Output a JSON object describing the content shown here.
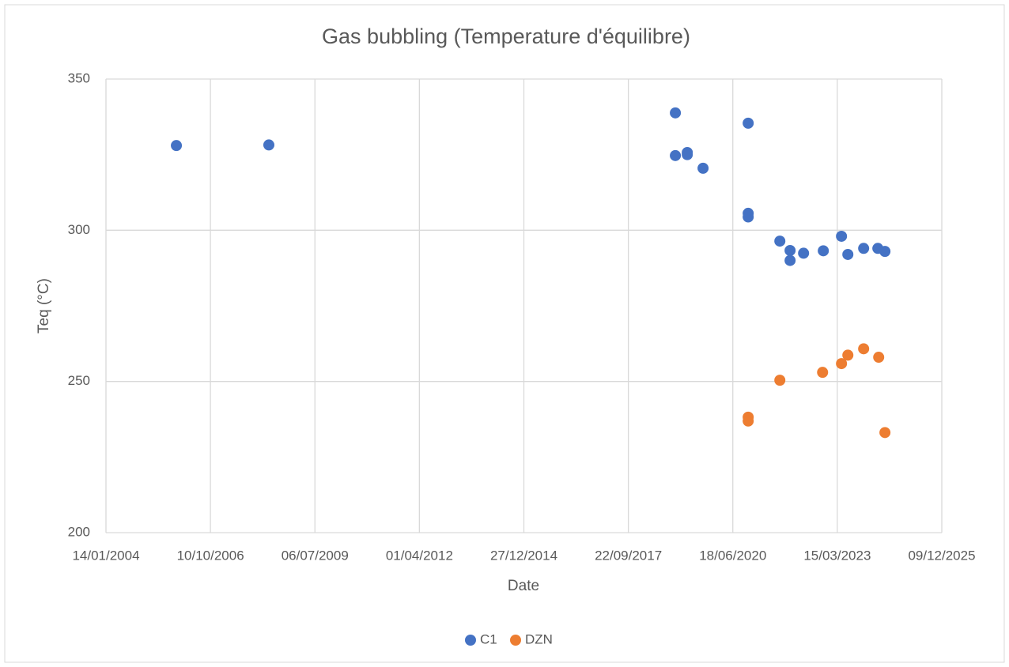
{
  "chart_data": {
    "type": "scatter",
    "title": "Gas bubbling (Temperature d'équilibre)",
    "x_label": "Date",
    "y_label": "Teq (°C)",
    "xlim": [
      38000,
      46000
    ],
    "xticks": [
      {
        "value": 38000,
        "label": "14/01/2004"
      },
      {
        "value": 39000,
        "label": "10/10/2006"
      },
      {
        "value": 40000,
        "label": "06/07/2009"
      },
      {
        "value": 41000,
        "label": "01/04/2012"
      },
      {
        "value": 42000,
        "label": "27/12/2014"
      },
      {
        "value": 43000,
        "label": "22/09/2017"
      },
      {
        "value": 44000,
        "label": "18/06/2020"
      },
      {
        "value": 45000,
        "label": "15/03/2023"
      },
      {
        "value": 46000,
        "label": "09/12/2025"
      }
    ],
    "ylim": [
      200,
      350
    ],
    "yticks": [
      200,
      250,
      300,
      350
    ],
    "grid": true,
    "legend": "bottom",
    "series": [
      {
        "name": "C1",
        "color": "#4472c4",
        "x": [
          38674,
          39559,
          43450,
          43450,
          43564,
          43564,
          43715,
          44147,
          44147,
          44147,
          44450,
          44548,
          44548,
          44677,
          44866,
          45040,
          45101,
          45252,
          45388,
          45456
        ],
        "values": [
          328,
          328.2,
          338.8,
          324.7,
          325.7,
          325,
          320.5,
          335.4,
          305.6,
          304.4,
          296.4,
          293.3,
          290,
          292.4,
          293.2,
          298,
          292,
          294,
          294,
          293
        ]
      },
      {
        "name": "DZN",
        "color": "#ed7d31",
        "x": [
          44147,
          44147,
          44450,
          44859,
          45040,
          45101,
          45252,
          45396,
          45456
        ],
        "values": [
          238.2,
          236.9,
          250.4,
          253,
          255.9,
          258.7,
          260.8,
          258,
          233.1
        ]
      }
    ]
  }
}
